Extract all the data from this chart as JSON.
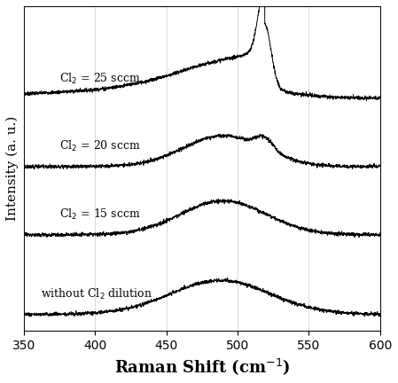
{
  "xlabel": "Raman Shift (cm$^{-1}$)",
  "ylabel": "Intensity (a. u.)",
  "xlim": [
    350,
    600
  ],
  "ylim": [
    -0.05,
    1.05
  ],
  "background_color": "#ffffff",
  "grid_color": "#bbbbbb",
  "line_color": "#000000",
  "labels": [
    "Cl$_2$ = 25 sccm",
    "Cl$_2$ = 20 sccm",
    "Cl$_2$ = 15 sccm",
    "without Cl$_2$ dilution"
  ],
  "offsets": [
    0.73,
    0.5,
    0.27,
    0.0
  ],
  "noise_amplitude": 0.003,
  "xlabel_fontsize": 13,
  "ylabel_fontsize": 11,
  "tick_fontsize": 10,
  "label_fontsize": 9
}
